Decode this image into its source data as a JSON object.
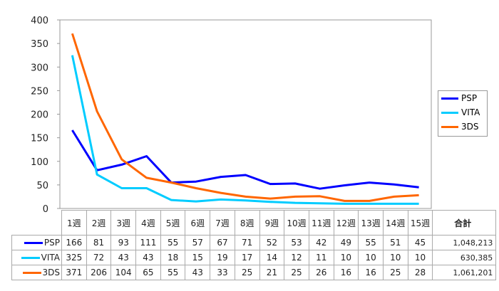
{
  "chart_data": {
    "type": "line",
    "categories": [
      "1週",
      "2週",
      "3週",
      "4週",
      "5週",
      "6週",
      "7週",
      "8週",
      "9週",
      "10週",
      "11週",
      "12週",
      "13週",
      "14週",
      "15週"
    ],
    "ylim": [
      0,
      400
    ],
    "yticks": [
      "0",
      "50",
      "100",
      "150",
      "200",
      "250",
      "300",
      "350",
      "400"
    ],
    "grid": false,
    "legend_position": "right",
    "series": [
      {
        "name": "PSP",
        "color": "#0000ff",
        "values": [
          166,
          81,
          93,
          111,
          55,
          57,
          67,
          71,
          52,
          53,
          42,
          49,
          55,
          51,
          45
        ],
        "total": "1,048,213"
      },
      {
        "name": "VITA",
        "color": "#00ccff",
        "values": [
          325,
          72,
          43,
          43,
          18,
          15,
          19,
          17,
          14,
          12,
          11,
          10,
          10,
          10,
          10
        ],
        "total": "630,385"
      },
      {
        "name": "3DS",
        "color": "#ff6600",
        "values": [
          371,
          206,
          104,
          65,
          55,
          43,
          33,
          25,
          21,
          25,
          26,
          16,
          16,
          25,
          28
        ],
        "total": "1,061,201"
      }
    ],
    "total_header": "合計"
  }
}
